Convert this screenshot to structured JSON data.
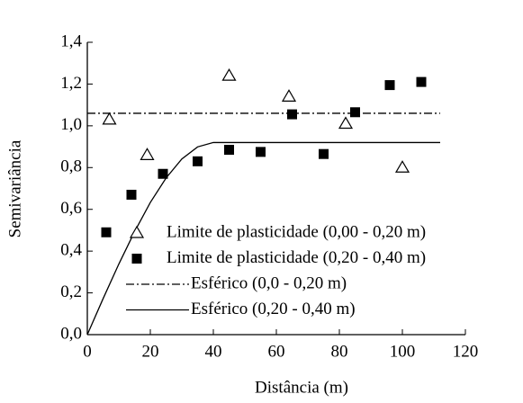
{
  "chart_data": {
    "type": "scatter",
    "x_label": "Distância (m)",
    "y_label": "Semivariância",
    "xlim": [
      0,
      120
    ],
    "xticks": [
      0,
      20,
      40,
      60,
      80,
      100,
      120
    ],
    "ylim": [
      0,
      1.4
    ],
    "yticks": [
      {
        "value": 0,
        "label": "0,0"
      },
      {
        "value": 0.2,
        "label": "0,2"
      },
      {
        "value": 0.4,
        "label": "0,4"
      },
      {
        "value": 0.6,
        "label": "0,6"
      },
      {
        "value": 0.8,
        "label": "0,8"
      },
      {
        "value": 1.0,
        "label": "1,0"
      },
      {
        "value": 1.2,
        "label": "1,2"
      },
      {
        "value": 1.4,
        "label": "1,4"
      }
    ],
    "legend": "lower right",
    "series": [
      {
        "name": "Limite de plasticidade (0,00 - 0,20 m)",
        "type": "scatter",
        "marker": "triangle",
        "color": "#000000",
        "x": [
          7,
          19,
          45,
          64,
          82,
          100
        ],
        "values": [
          1.03,
          0.86,
          1.24,
          1.14,
          1.01,
          0.8
        ]
      },
      {
        "name": "Limite de plasticidade (0,20 - 0,40 m)",
        "type": "scatter",
        "marker": "square",
        "color": "#000000",
        "x": [
          6,
          14,
          24,
          35,
          45,
          55,
          65,
          75,
          85,
          96,
          106
        ],
        "values": [
          0.49,
          0.67,
          0.77,
          0.83,
          0.885,
          0.875,
          1.055,
          0.865,
          1.065,
          1.195,
          1.21
        ]
      },
      {
        "name": "Esférico (0,0 - 0,20 m)",
        "type": "line",
        "style": "dash-dot",
        "color": "#000000",
        "x": [
          0,
          112
        ],
        "values": [
          1.06,
          1.06
        ]
      },
      {
        "name": "Esférico (0,20 - 0,40 m)",
        "type": "line",
        "style": "solid",
        "color": "#000000",
        "x": [
          0,
          5,
          10,
          15,
          20,
          25,
          30,
          35,
          40,
          112
        ],
        "values": [
          0,
          0.172,
          0.338,
          0.493,
          0.633,
          0.75,
          0.841,
          0.899,
          0.92,
          0.92
        ]
      }
    ]
  }
}
